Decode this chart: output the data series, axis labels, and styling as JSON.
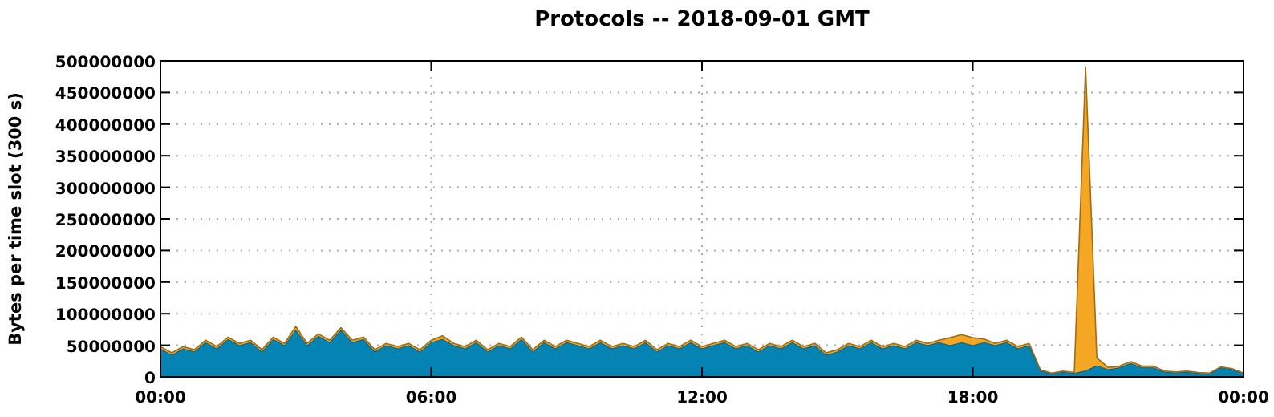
{
  "chart_data": {
    "type": "area",
    "stacked": true,
    "title": "Protocols -- 2018-09-01 GMT",
    "ylabel": "Bytes per time slot (300 s)",
    "x": [
      0,
      0.25,
      0.5,
      0.75,
      1,
      1.25,
      1.5,
      1.75,
      2,
      2.25,
      2.5,
      2.75,
      3,
      3.25,
      3.5,
      3.75,
      4,
      4.25,
      4.5,
      4.75,
      5,
      5.25,
      5.5,
      5.75,
      6,
      6.25,
      6.5,
      6.75,
      7,
      7.25,
      7.5,
      7.75,
      8,
      8.25,
      8.5,
      8.75,
      9,
      9.25,
      9.5,
      9.75,
      10,
      10.25,
      10.5,
      10.75,
      11,
      11.25,
      11.5,
      11.75,
      12,
      12.25,
      12.5,
      12.75,
      13,
      13.25,
      13.5,
      13.75,
      14,
      14.25,
      14.5,
      14.75,
      15,
      15.25,
      15.5,
      15.75,
      16,
      16.25,
      16.5,
      16.75,
      17,
      17.25,
      17.5,
      17.75,
      18,
      18.25,
      18.5,
      18.75,
      19,
      19.25,
      19.5,
      19.75,
      20,
      20.25,
      20.5,
      20.75,
      21,
      21.25,
      21.5,
      21.75,
      22,
      22.25,
      22.5,
      22.75,
      23,
      23.25,
      23.5,
      23.75,
      24
    ],
    "series": [
      {
        "color": "#0584b4",
        "values": [
          45000000,
          35000000,
          45000000,
          40000000,
          55000000,
          45000000,
          60000000,
          50000000,
          55000000,
          40000000,
          60000000,
          50000000,
          75000000,
          50000000,
          65000000,
          55000000,
          75000000,
          55000000,
          60000000,
          40000000,
          50000000,
          45000000,
          50000000,
          40000000,
          55000000,
          60000000,
          50000000,
          45000000,
          55000000,
          40000000,
          50000000,
          45000000,
          60000000,
          40000000,
          55000000,
          45000000,
          55000000,
          50000000,
          45000000,
          55000000,
          45000000,
          50000000,
          45000000,
          55000000,
          40000000,
          50000000,
          45000000,
          55000000,
          45000000,
          50000000,
          55000000,
          45000000,
          50000000,
          40000000,
          50000000,
          45000000,
          55000000,
          45000000,
          50000000,
          35000000,
          40000000,
          50000000,
          45000000,
          55000000,
          45000000,
          50000000,
          45000000,
          55000000,
          50000000,
          55000000,
          50000000,
          55000000,
          50000000,
          55000000,
          50000000,
          55000000,
          45000000,
          50000000,
          10000000,
          5000000,
          8000000,
          6000000,
          10000000,
          18000000,
          12000000,
          15000000,
          22000000,
          15000000,
          15000000,
          8000000,
          7000000,
          8000000,
          6000000,
          5000000,
          15000000,
          12000000,
          5000000
        ]
      },
      {
        "color": "#f5a623",
        "values": [
          3000000,
          3000000,
          3000000,
          3000000,
          3000000,
          3000000,
          3000000,
          3000000,
          3000000,
          3000000,
          3000000,
          3000000,
          5000000,
          3000000,
          3000000,
          3000000,
          3000000,
          3000000,
          3000000,
          3000000,
          3000000,
          3000000,
          3000000,
          3000000,
          3000000,
          5000000,
          3000000,
          3000000,
          3000000,
          3000000,
          3000000,
          3000000,
          3000000,
          3000000,
          3000000,
          3000000,
          3000000,
          3000000,
          3000000,
          3000000,
          3000000,
          3000000,
          3000000,
          3000000,
          3000000,
          3000000,
          3000000,
          3000000,
          3000000,
          3000000,
          3000000,
          3000000,
          3000000,
          3000000,
          3000000,
          3000000,
          3000000,
          3000000,
          3000000,
          3000000,
          3000000,
          3000000,
          3000000,
          3000000,
          3000000,
          3000000,
          3000000,
          3000000,
          3000000,
          3000000,
          12000000,
          12000000,
          12000000,
          5000000,
          3000000,
          3000000,
          3000000,
          3000000,
          1000000,
          1000000,
          1000000,
          1000000,
          480000000,
          12000000,
          3000000,
          2000000,
          2000000,
          2000000,
          2000000,
          1000000,
          1000000,
          1000000,
          1000000,
          1000000,
          1000000,
          1000000,
          1000000
        ]
      }
    ],
    "xlim": [
      0,
      24
    ],
    "xticks": [
      {
        "value": 0,
        "label": "00:00"
      },
      {
        "value": 6,
        "label": "06:00"
      },
      {
        "value": 12,
        "label": "12:00"
      },
      {
        "value": 18,
        "label": "18:00"
      },
      {
        "value": 24,
        "label": "00:00"
      }
    ],
    "ylim": [
      0,
      500000000
    ],
    "yticks": [
      0,
      50000000,
      100000000,
      150000000,
      200000000,
      250000000,
      300000000,
      350000000,
      400000000,
      450000000,
      500000000
    ],
    "grid": true
  }
}
